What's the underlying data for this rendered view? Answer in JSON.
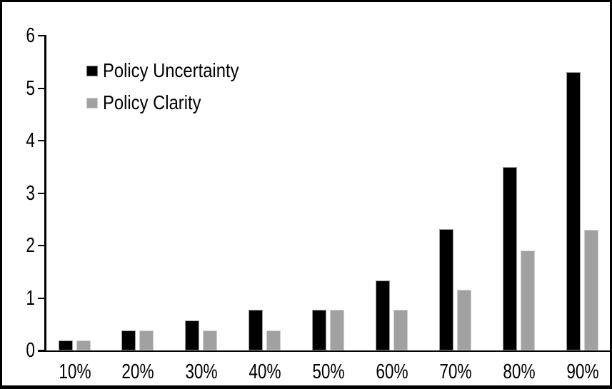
{
  "chart_data": {
    "type": "bar",
    "title": "",
    "xlabel": "",
    "ylabel": "",
    "categories": [
      "10%",
      "20%",
      "30%",
      "40%",
      "50%",
      "60%",
      "70%",
      "80%",
      "90%"
    ],
    "series": [
      {
        "name": "Policy Uncertainty",
        "color": "#000000",
        "values": [
          0.19,
          0.38,
          0.57,
          0.77,
          0.77,
          1.33,
          2.31,
          3.5,
          5.3
        ]
      },
      {
        "name": "Policy Clarity",
        "color": "#a1a1a1",
        "values": [
          0.19,
          0.38,
          0.38,
          0.38,
          0.77,
          0.77,
          1.15,
          1.9,
          2.3
        ]
      }
    ],
    "ylim": [
      0,
      6
    ],
    "yticks": [
      "0",
      "1",
      "2",
      "3",
      "4",
      "5",
      "6"
    ],
    "grid": false,
    "legend_position": "top-left",
    "axis_color": "#000000",
    "frame_color": "#000000",
    "background_color": "#ffffff"
  }
}
